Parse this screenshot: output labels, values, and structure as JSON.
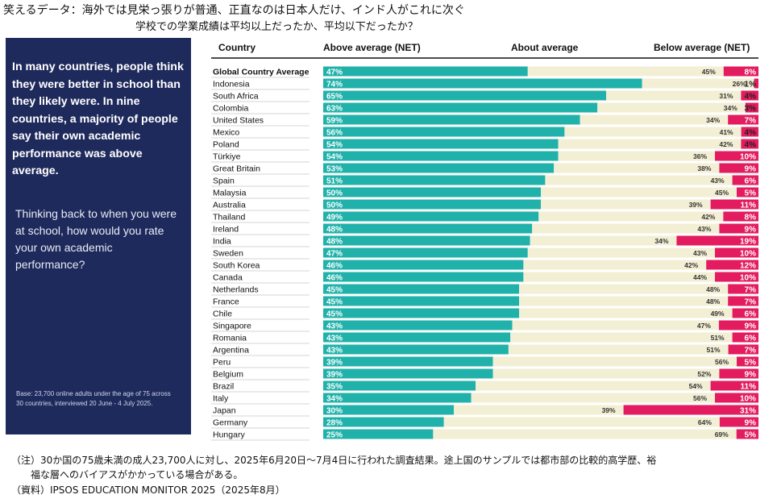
{
  "header": {
    "title": "笑えるデータ：海外では見栄っ張りが普通、正直なのは日本人だけ、インド人がこれに次ぐ",
    "subtitle": "学校での学業成績は平均以上だったか、平均以下だったか？"
  },
  "panel": {
    "lead": "In many countries, people think they were better in school than they likely were. In nine countries, a majority of people say their own academic performance was above average.",
    "question": "Thinking back to when you were at school, how would you rate your own academic performance?",
    "base": "Base: 23,700 online adults under the age of 75 across 30 countries, interviewed 20 June - 4 July 2025."
  },
  "colors": {
    "above": "#20b2aa",
    "about": "#f3efd5",
    "below": "#e31b5f",
    "panel": "#1f2a5c"
  },
  "chart_data": {
    "type": "bar",
    "stacked": true,
    "orientation": "horizontal",
    "column_headers": [
      "Country",
      "Above average (NET)",
      "About average",
      "Below average (NET)"
    ],
    "categories": [
      "Global Country Average",
      "Indonesia",
      "South Africa",
      "Colombia",
      "United States",
      "Mexico",
      "Poland",
      "Türkiye",
      "Great Britain",
      "Spain",
      "Malaysia",
      "Australia",
      "Thailand",
      "Ireland",
      "India",
      "Sweden",
      "South Korea",
      "Canada",
      "Netherlands",
      "France",
      "Chile",
      "Singapore",
      "Romania",
      "Argentina",
      "Peru",
      "Belgium",
      "Brazil",
      "Italy",
      "Japan",
      "Germany",
      "Hungary"
    ],
    "series": [
      {
        "name": "Above average (NET)",
        "values": [
          47,
          74,
          65,
          63,
          59,
          56,
          54,
          54,
          53,
          51,
          50,
          50,
          49,
          48,
          48,
          47,
          46,
          46,
          45,
          45,
          45,
          43,
          43,
          43,
          39,
          39,
          35,
          34,
          30,
          28,
          25
        ]
      },
      {
        "name": "About average",
        "values": [
          45,
          26,
          31,
          34,
          34,
          41,
          42,
          36,
          38,
          43,
          45,
          39,
          42,
          43,
          34,
          43,
          42,
          44,
          48,
          48,
          49,
          47,
          51,
          51,
          56,
          52,
          54,
          56,
          39,
          64,
          69
        ]
      },
      {
        "name": "Below average (NET)",
        "values": [
          8,
          1,
          4,
          3,
          7,
          4,
          4,
          10,
          9,
          6,
          5,
          11,
          8,
          9,
          19,
          10,
          12,
          10,
          7,
          7,
          6,
          9,
          6,
          7,
          5,
          9,
          11,
          10,
          31,
          9,
          5
        ]
      }
    ],
    "value_format": "percent"
  },
  "notes": {
    "line1": "（注）30か国の75歳未満の成人23,700人に対し、2025年6月20日～7月4日に行われた調査結果。途上国のサンプルでは都市部の比較的高学歴、裕",
    "line2": "　　福な層へのバイアスがかかっている場合がある。",
    "line3": "（資料）IPSOS EDUCATION MONITOR 2025（2025年8月）"
  }
}
